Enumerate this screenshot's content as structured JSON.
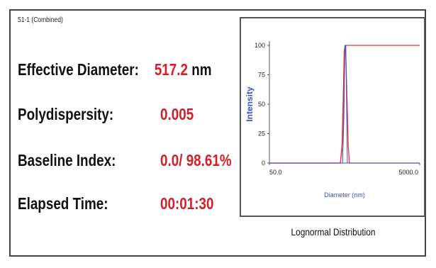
{
  "sample": {
    "title": "51-1 (Combined)"
  },
  "results": [
    {
      "label": "Effective Diameter:",
      "value": "517.2",
      "unit": "nm"
    },
    {
      "label": "Polydispersity:",
      "value": "0.005",
      "unit": ""
    },
    {
      "label": "Baseline Index:",
      "value": "0.0/ 98.61%",
      "unit": ""
    },
    {
      "label": "Elapsed Time:",
      "value": "00:01:30",
      "unit": ""
    }
  ],
  "chart_data": {
    "type": "line",
    "title": "",
    "xlabel": "Diameter (nm)",
    "ylabel": "Intensity",
    "xscale": "log",
    "xlim": [
      50.0,
      5000.0
    ],
    "ylim": [
      0,
      100
    ],
    "x_tick_labels": [
      "50.0",
      "5000.0"
    ],
    "y_tick_labels": [
      "100",
      "75",
      "50",
      "25",
      "0"
    ],
    "grid": false,
    "series": [
      {
        "color": "#e33b3b",
        "x": [
          50,
          380,
          440,
          470,
          490,
          500,
          520,
          540,
          560,
          600,
          5000
        ],
        "y": [
          0,
          0,
          0,
          20,
          65,
          95,
          100,
          100,
          100,
          100,
          100
        ]
      },
      {
        "color": "#e33b3b",
        "x": [
          50,
          440,
          460,
          480,
          495,
          510,
          520,
          540,
          560,
          580,
          5000
        ],
        "y": [
          0,
          0,
          10,
          55,
          95,
          100,
          90,
          55,
          15,
          0,
          0
        ]
      },
      {
        "color": "#3b4fc8",
        "x": [
          50,
          470,
          490,
          505,
          520,
          535,
          545,
          5000
        ],
        "y": [
          0,
          0,
          40,
          100,
          100,
          40,
          0,
          0
        ]
      }
    ],
    "caption": "Lognormal Distribution"
  }
}
